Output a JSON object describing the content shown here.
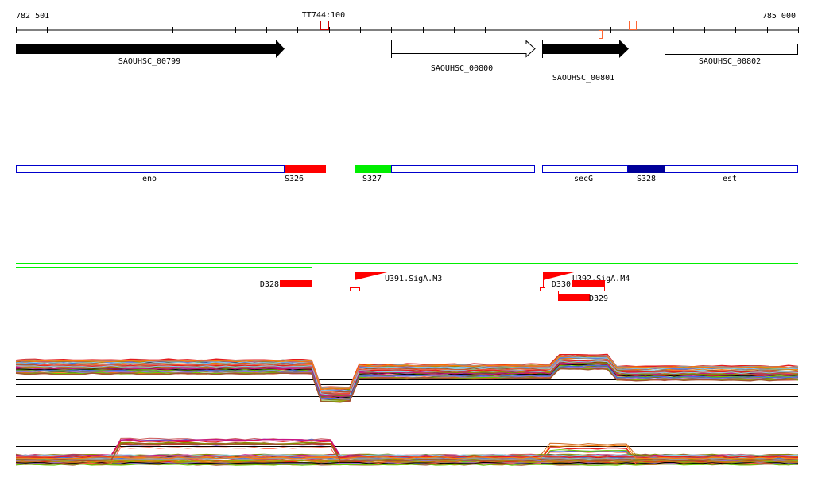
{
  "ruler": {
    "start_label": "782 501",
    "end_label": "785 000",
    "marker_label": "TT744:100"
  },
  "genes": [
    {
      "name": "SAOUHSC_00799",
      "strand": "+",
      "style": "filled"
    },
    {
      "name": "SAOUHSC_00800",
      "strand": "+",
      "style": "open"
    },
    {
      "name": "SAOUHSC_00801",
      "strand": "+",
      "style": "filled"
    },
    {
      "name": "SAOUHSC_00802",
      "strand": "",
      "style": "open"
    }
  ],
  "transcripts": [
    {
      "label": "eno",
      "color": "#ffffff"
    },
    {
      "label": "S326",
      "color": "#ff0000"
    },
    {
      "label": "S327",
      "color": "#00ee00"
    },
    {
      "label": "",
      "color": "#ffffff"
    },
    {
      "label": "secG",
      "color": "#ffffff"
    },
    {
      "label": "S328",
      "color": "#000099"
    },
    {
      "label": "est",
      "color": "#ffffff"
    }
  ],
  "features": {
    "d328": "D328",
    "u391": "U391.SigA.M3",
    "u392": "U392.SigA.M4",
    "d330": "D330",
    "d329": "D329"
  },
  "colors": {
    "red": "#ff0000",
    "green": "#00ee00",
    "navy": "#000099",
    "marker": "#cc0000",
    "marker_light": "#ff6633",
    "palette": [
      "#e41a1c",
      "#ff7f00",
      "#8b8b00",
      "#66cc00",
      "#c71585",
      "#87ceeb",
      "#a0522d",
      "#d2691e",
      "#9370db",
      "#000000",
      "#ff6347",
      "#b8860b",
      "#4169e1",
      "#999999",
      "#cd5c5c",
      "#556b2f"
    ]
  }
}
